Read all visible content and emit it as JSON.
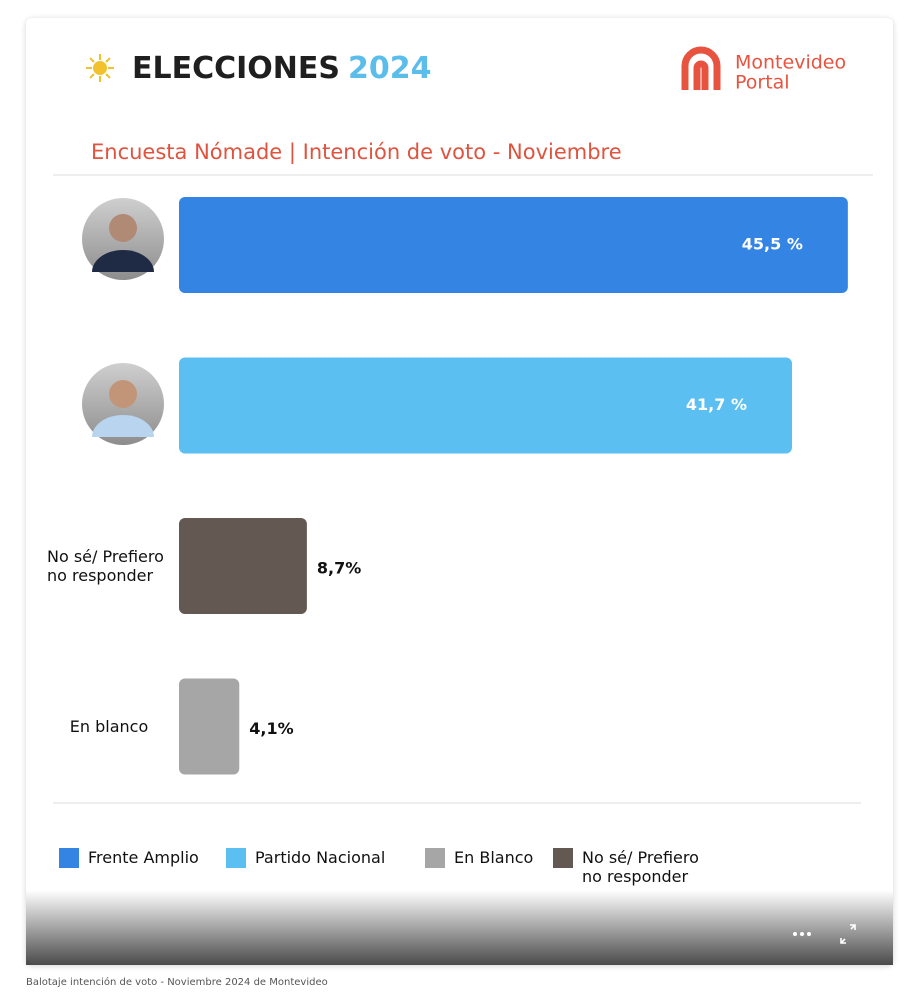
{
  "header": {
    "title": "ELECCIONES",
    "year": "2024",
    "logo_top": "Montevideo",
    "logo_bottom": "Portal"
  },
  "chart_data": {
    "type": "bar",
    "orientation": "horizontal",
    "subtitle": "Encuesta Nómade |  Intención de voto - Noviembre",
    "categories": [
      null,
      null,
      "No sé/ Prefiero no responder",
      "En blanco"
    ],
    "values": [
      45.5,
      41.7,
      8.7,
      4.1
    ],
    "value_labels": [
      "45,5 %",
      "41,7 %",
      "8,7%",
      "4,1%"
    ],
    "colors": [
      "#3484e4",
      "#5bbff2",
      "#635852",
      "#a6a6a6"
    ],
    "legend": [
      {
        "name": "Frente Amplio",
        "color": "#3484e4"
      },
      {
        "name": "Partido Nacional",
        "color": "#5bbff2"
      },
      {
        "name": "En Blanco",
        "color": "#a6a6a6"
      },
      {
        "name": "No sé/ Prefiero no responder",
        "color": "#635852"
      }
    ]
  },
  "caption": "Balotaje intención de voto - Noviembre 2024 de Montevideo"
}
